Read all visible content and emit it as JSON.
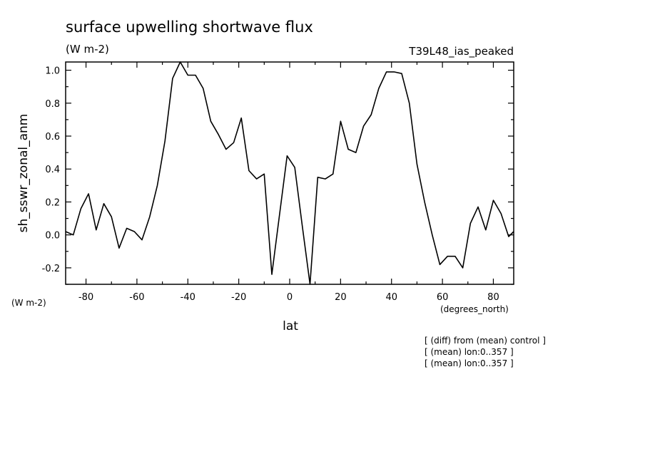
{
  "chart_data": {
    "type": "line",
    "title": "surface upwelling shortwave flux",
    "units": "(W m-2)",
    "experiment": "T39L48_ias_peaked",
    "ylabel": "sh_sswr_zonal_anm",
    "y_units": "(W m-2)",
    "xlabel": "lat",
    "x_units": "(degrees_north)",
    "xlim": [
      -88,
      88
    ],
    "ylim": [
      -0.3,
      1.05
    ],
    "x_ticks": [
      -80,
      -60,
      -40,
      -20,
      0,
      20,
      40,
      60,
      80
    ],
    "x_tick_labels": [
      "-80",
      "-60",
      "-40",
      "-20",
      "0",
      "20",
      "40",
      "60",
      "80"
    ],
    "y_ticks": [
      -0.2,
      0.0,
      0.2,
      0.4,
      0.6,
      0.8,
      1.0
    ],
    "y_tick_labels": [
      "-0.2",
      "0.0",
      "0.2",
      "0.4",
      "0.6",
      "0.8",
      "1.0"
    ],
    "grid": false,
    "series": [
      {
        "x": [
          -88,
          -85,
          -82,
          -79,
          -76,
          -73,
          -70,
          -67,
          -64,
          -61,
          -58,
          -55,
          -52,
          -49,
          -46,
          -43,
          -40,
          -37,
          -34,
          -31,
          -28,
          -25,
          -22,
          -19,
          -16,
          -13,
          -10,
          -7,
          -4,
          -1,
          2,
          5,
          8,
          11,
          14,
          17,
          20,
          23,
          26,
          29,
          32,
          35,
          38,
          41,
          44,
          47,
          50,
          53,
          56,
          59,
          62,
          65,
          68,
          71,
          74,
          77,
          80,
          83,
          86,
          88
        ],
        "y": [
          0.02,
          0.0,
          0.16,
          0.25,
          0.03,
          0.19,
          0.11,
          -0.08,
          0.04,
          0.02,
          -0.03,
          0.11,
          0.3,
          0.57,
          0.95,
          1.05,
          0.97,
          0.97,
          0.89,
          0.69,
          0.61,
          0.52,
          0.56,
          0.71,
          0.39,
          0.34,
          0.37,
          -0.24,
          0.12,
          0.48,
          0.41,
          0.05,
          -0.3,
          0.35,
          0.34,
          0.37,
          0.69,
          0.52,
          0.5,
          0.66,
          0.73,
          0.89,
          0.99,
          0.99,
          0.98,
          0.8,
          0.43,
          0.2,
          0.0,
          -0.18,
          -0.13,
          -0.13,
          -0.2,
          0.07,
          0.17,
          0.03,
          0.21,
          0.13,
          -0.01,
          0.02
        ]
      }
    ],
    "notes": [
      "[ (diff) from (mean) control ]",
      "[ (mean) lon:0..357 ]",
      "[ (mean) lon:0..357 ]"
    ]
  }
}
